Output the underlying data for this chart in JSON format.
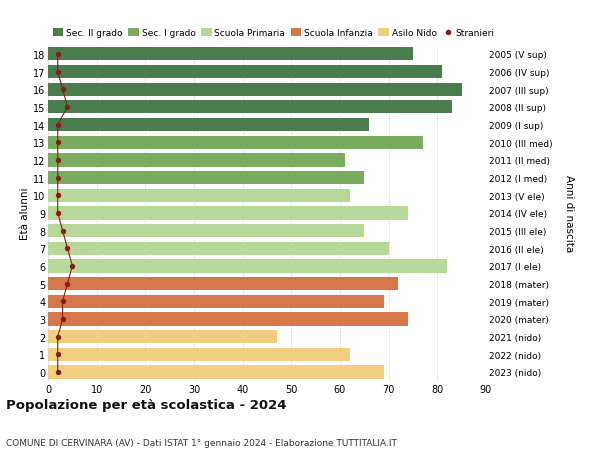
{
  "ages": [
    18,
    17,
    16,
    15,
    14,
    13,
    12,
    11,
    10,
    9,
    8,
    7,
    6,
    5,
    4,
    3,
    2,
    1,
    0
  ],
  "labels_right": [
    "2005 (V sup)",
    "2006 (IV sup)",
    "2007 (III sup)",
    "2008 (II sup)",
    "2009 (I sup)",
    "2010 (III med)",
    "2011 (II med)",
    "2012 (I med)",
    "2013 (V ele)",
    "2014 (IV ele)",
    "2015 (III ele)",
    "2016 (II ele)",
    "2017 (I ele)",
    "2018 (mater)",
    "2019 (mater)",
    "2020 (mater)",
    "2021 (nido)",
    "2022 (nido)",
    "2023 (nido)"
  ],
  "bar_values": [
    75,
    81,
    85,
    83,
    66,
    77,
    61,
    65,
    62,
    74,
    65,
    70,
    82,
    72,
    69,
    74,
    47,
    62,
    69
  ],
  "bar_colors": [
    "#4a7c4e",
    "#4a7c4e",
    "#4a7c4e",
    "#4a7c4e",
    "#4a7c4e",
    "#7aab5f",
    "#7aab5f",
    "#7aab5f",
    "#b8d89a",
    "#b8d89a",
    "#b8d89a",
    "#b8d89a",
    "#b8d89a",
    "#d4784a",
    "#d4784a",
    "#d4784a",
    "#f0d080",
    "#f0d080",
    "#f0d080"
  ],
  "stranieri_values": [
    2,
    2,
    3,
    4,
    2,
    2,
    2,
    2,
    2,
    2,
    3,
    4,
    5,
    4,
    3,
    3,
    2,
    2,
    2
  ],
  "stranieri_color": "#8b1a1a",
  "xlim": [
    0,
    90
  ],
  "ylim": [
    -0.5,
    18.5
  ],
  "xlabel_ticks": [
    0,
    10,
    20,
    30,
    40,
    50,
    60,
    70,
    80,
    90
  ],
  "ylabel": "Età alunni",
  "ylabel_right": "Anni di nascita",
  "title": "Popolazione per età scolastica - 2024",
  "subtitle": "COMUNE DI CERVINARA (AV) - Dati ISTAT 1° gennaio 2024 - Elaborazione TUTTITALIA.IT",
  "legend_labels": [
    "Sec. II grado",
    "Sec. I grado",
    "Scuola Primaria",
    "Scuola Infanzia",
    "Asilo Nido",
    "Stranieri"
  ],
  "legend_colors": [
    "#4a7c4e",
    "#7aab5f",
    "#b8d89a",
    "#d4784a",
    "#f0d080",
    "#8b1a1a"
  ],
  "bg_color": "#ffffff",
  "grid_color": "#cccccc"
}
